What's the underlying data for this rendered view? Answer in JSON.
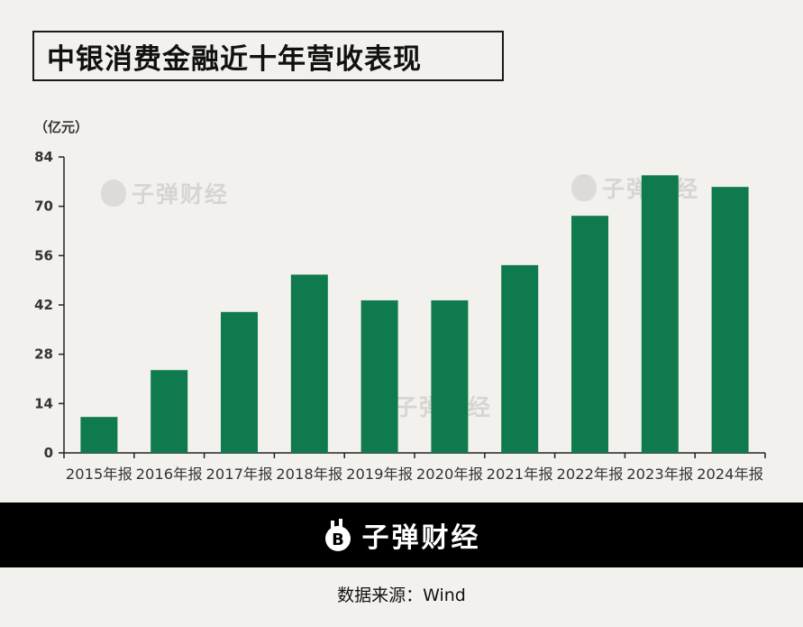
{
  "title": "中银消费金融近十年营收表现",
  "unit_label": "（亿元）",
  "watermark_text": "子弹财经",
  "footer": {
    "brand": "子弹财经",
    "source": "数据来源：Wind"
  },
  "colors": {
    "bar": "#0f7a4d",
    "background": "#f3f1ed",
    "axis": "#222222",
    "footer_band": "#000000"
  },
  "chart_data": {
    "type": "bar",
    "categories": [
      "2015年报",
      "2016年报",
      "2017年报",
      "2018年报",
      "2019年报",
      "2020年报",
      "2021年报",
      "2022年报",
      "2023年报",
      "2024年报"
    ],
    "values": [
      10.2,
      23.5,
      40.0,
      50.6,
      43.3,
      43.3,
      53.3,
      67.3,
      78.8,
      75.5
    ],
    "yticks": [
      0,
      14,
      28,
      42,
      56,
      70,
      84
    ],
    "ylim": [
      0,
      84
    ],
    "grid": false,
    "legend": "none"
  }
}
